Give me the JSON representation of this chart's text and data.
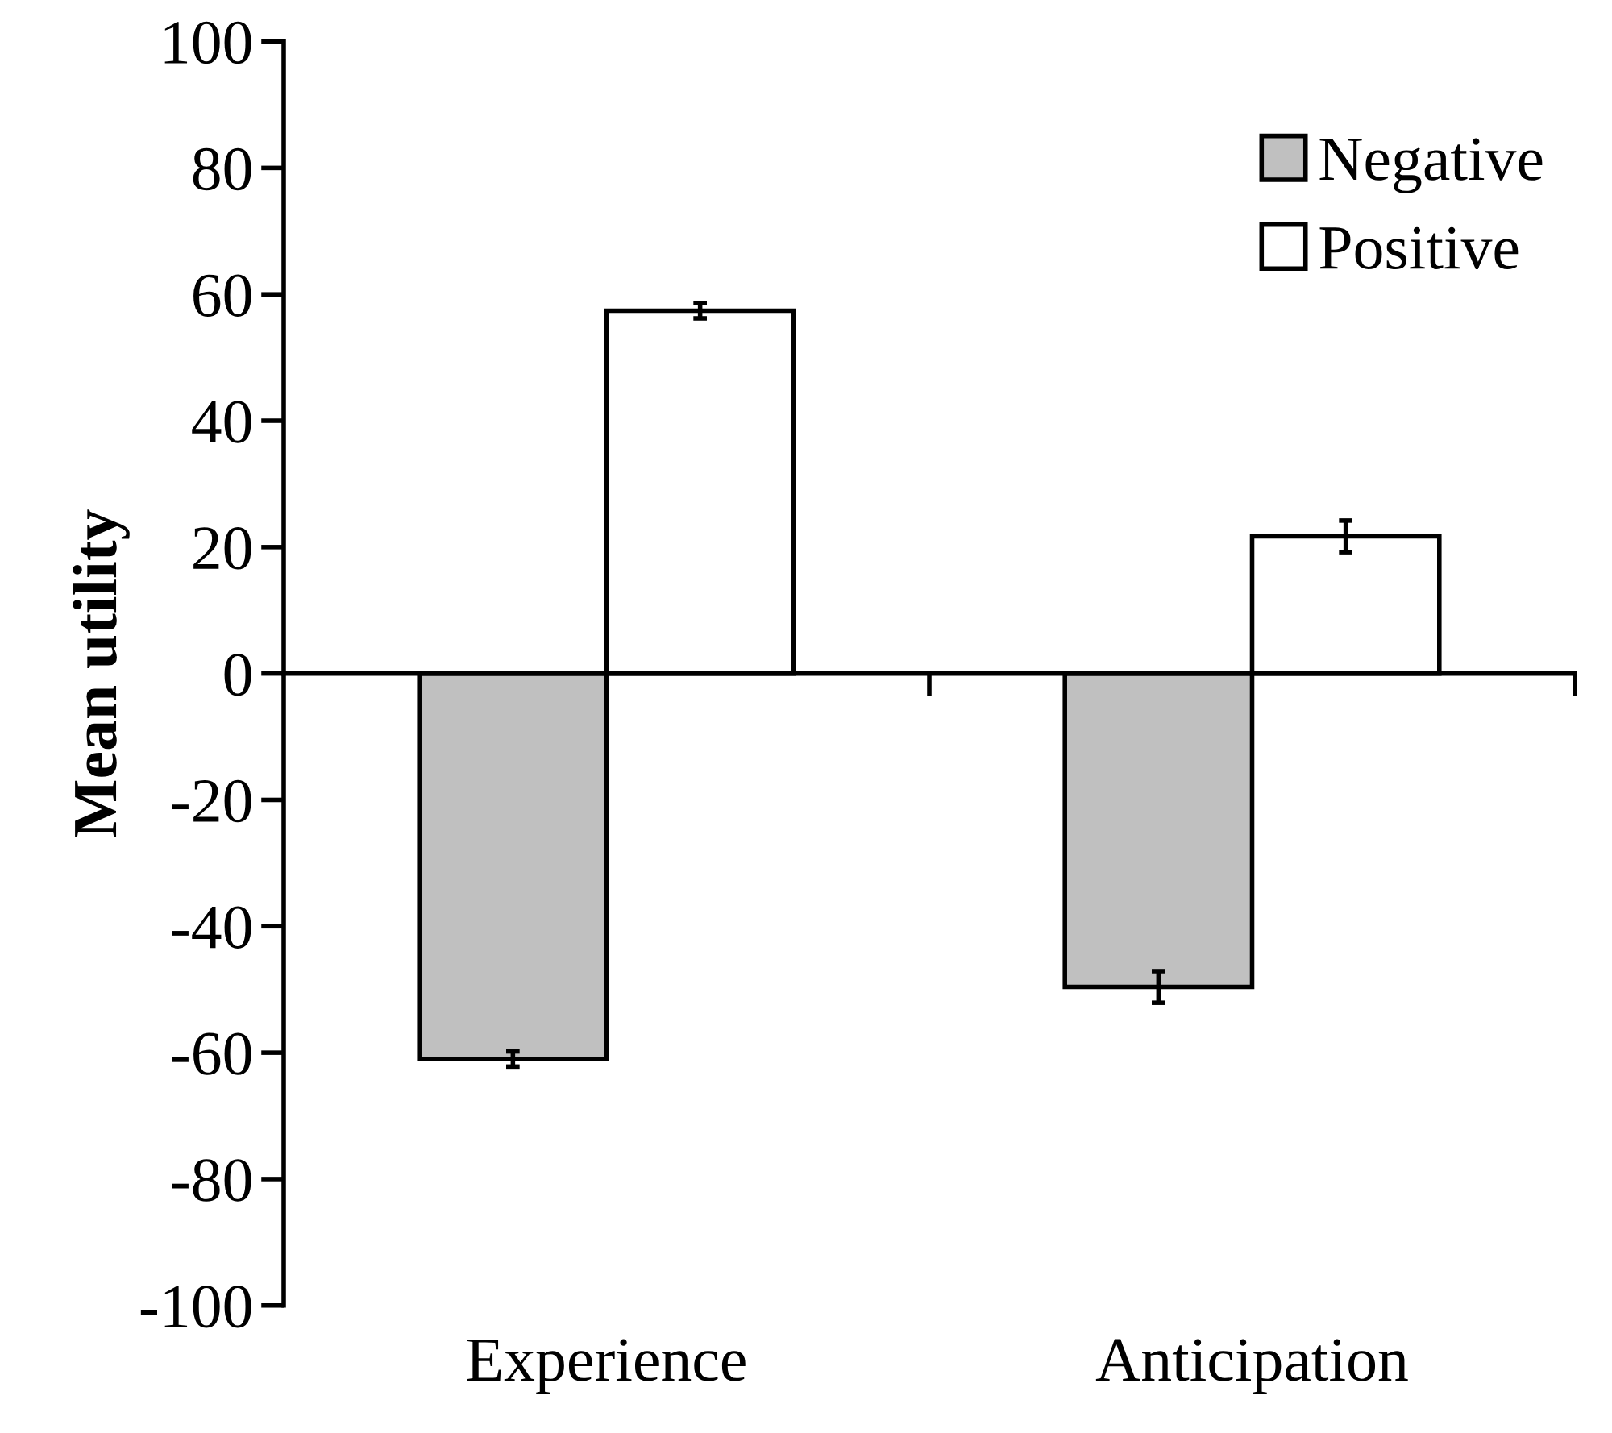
{
  "chart_data": {
    "type": "bar",
    "ylabel": "Mean utility",
    "categories": [
      "Experience",
      "Anticipation"
    ],
    "series": [
      {
        "name": "Negative",
        "color": "#c0c0c0",
        "values": [
          -61,
          -49.6
        ],
        "errors": [
          1.2,
          2.5
        ]
      },
      {
        "name": "Positive",
        "color": "#ffffff",
        "values": [
          57.4,
          21.7
        ],
        "errors": [
          1.2,
          2.5
        ]
      }
    ],
    "ylim": [
      -100,
      100
    ],
    "yticks": [
      -100,
      -80,
      -60,
      -40,
      -20,
      0,
      20,
      40,
      60,
      80,
      100
    ],
    "legend": "top right"
  }
}
